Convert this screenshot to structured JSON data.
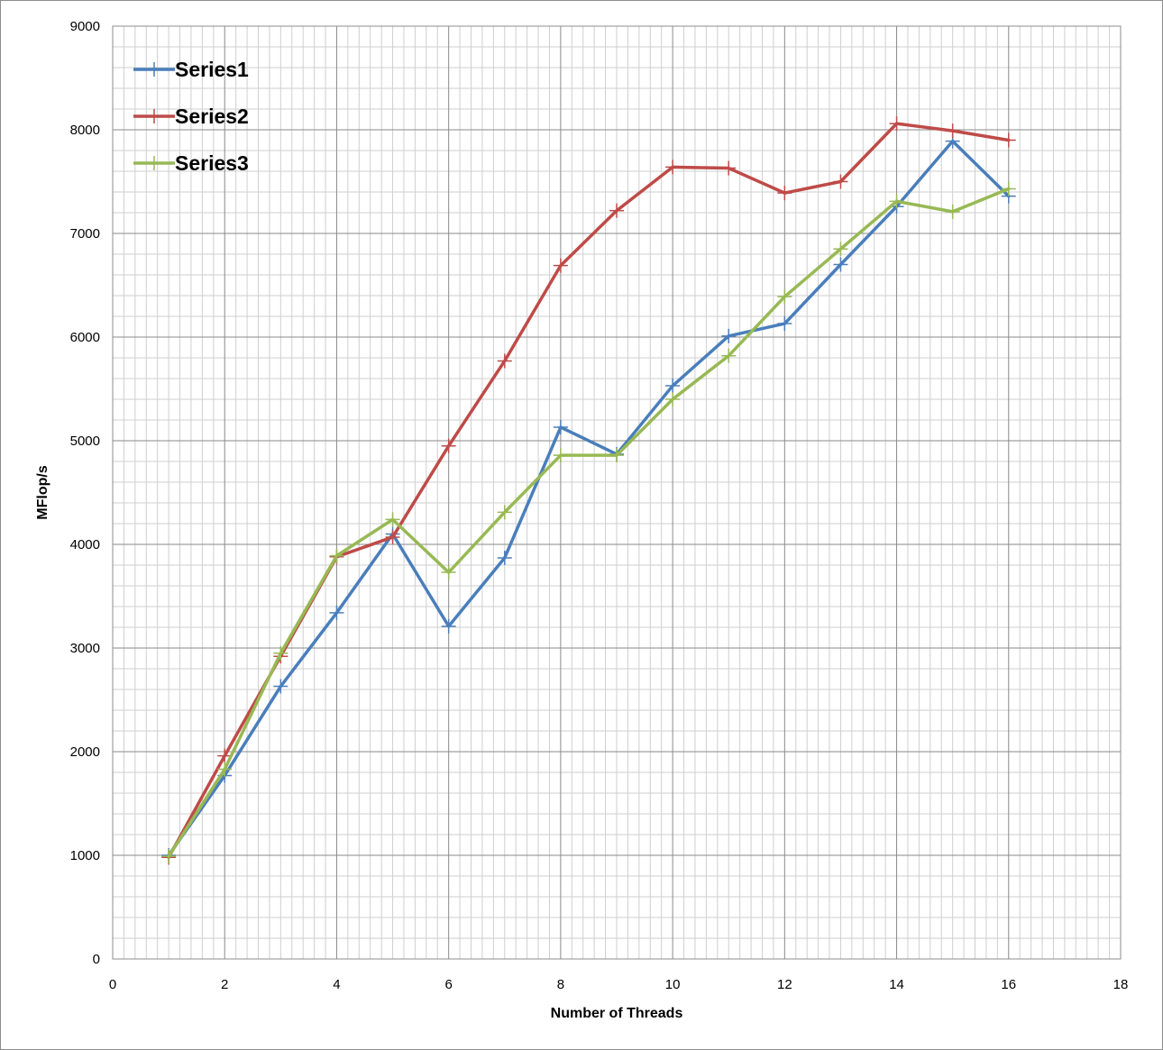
{
  "chart_data": {
    "type": "line",
    "title": "",
    "xlabel": "Number of Threads",
    "ylabel": "MFlop/s",
    "xlim": [
      0,
      18
    ],
    "ylim": [
      0,
      9000
    ],
    "xticks": [
      0,
      2,
      4,
      6,
      8,
      10,
      12,
      14,
      16,
      18
    ],
    "yticks": [
      0,
      1000,
      2000,
      3000,
      4000,
      5000,
      6000,
      7000,
      8000,
      9000
    ],
    "grid": true,
    "legend_position": "top-left",
    "x": [
      1,
      2,
      3,
      4,
      5,
      6,
      7,
      8,
      9,
      10,
      11,
      12,
      13,
      14,
      15,
      16
    ],
    "series": [
      {
        "name": "Series1",
        "color": "#4a7ebb",
        "values": [
          1000,
          1770,
          2630,
          3340,
          4100,
          3210,
          3870,
          5130,
          4870,
          5530,
          6010,
          6130,
          6700,
          7260,
          7890,
          7360
        ]
      },
      {
        "name": "Series2",
        "color": "#be4b48",
        "values": [
          980,
          1960,
          2920,
          3880,
          4070,
          4950,
          5770,
          6690,
          7220,
          7640,
          7630,
          7390,
          7500,
          8060,
          7990,
          7900
        ]
      },
      {
        "name": "Series3",
        "color": "#98b954",
        "values": [
          990,
          1830,
          2950,
          3890,
          4240,
          3730,
          4310,
          4860,
          4860,
          5400,
          5820,
          6390,
          6850,
          7310,
          7210,
          7430
        ]
      }
    ]
  }
}
